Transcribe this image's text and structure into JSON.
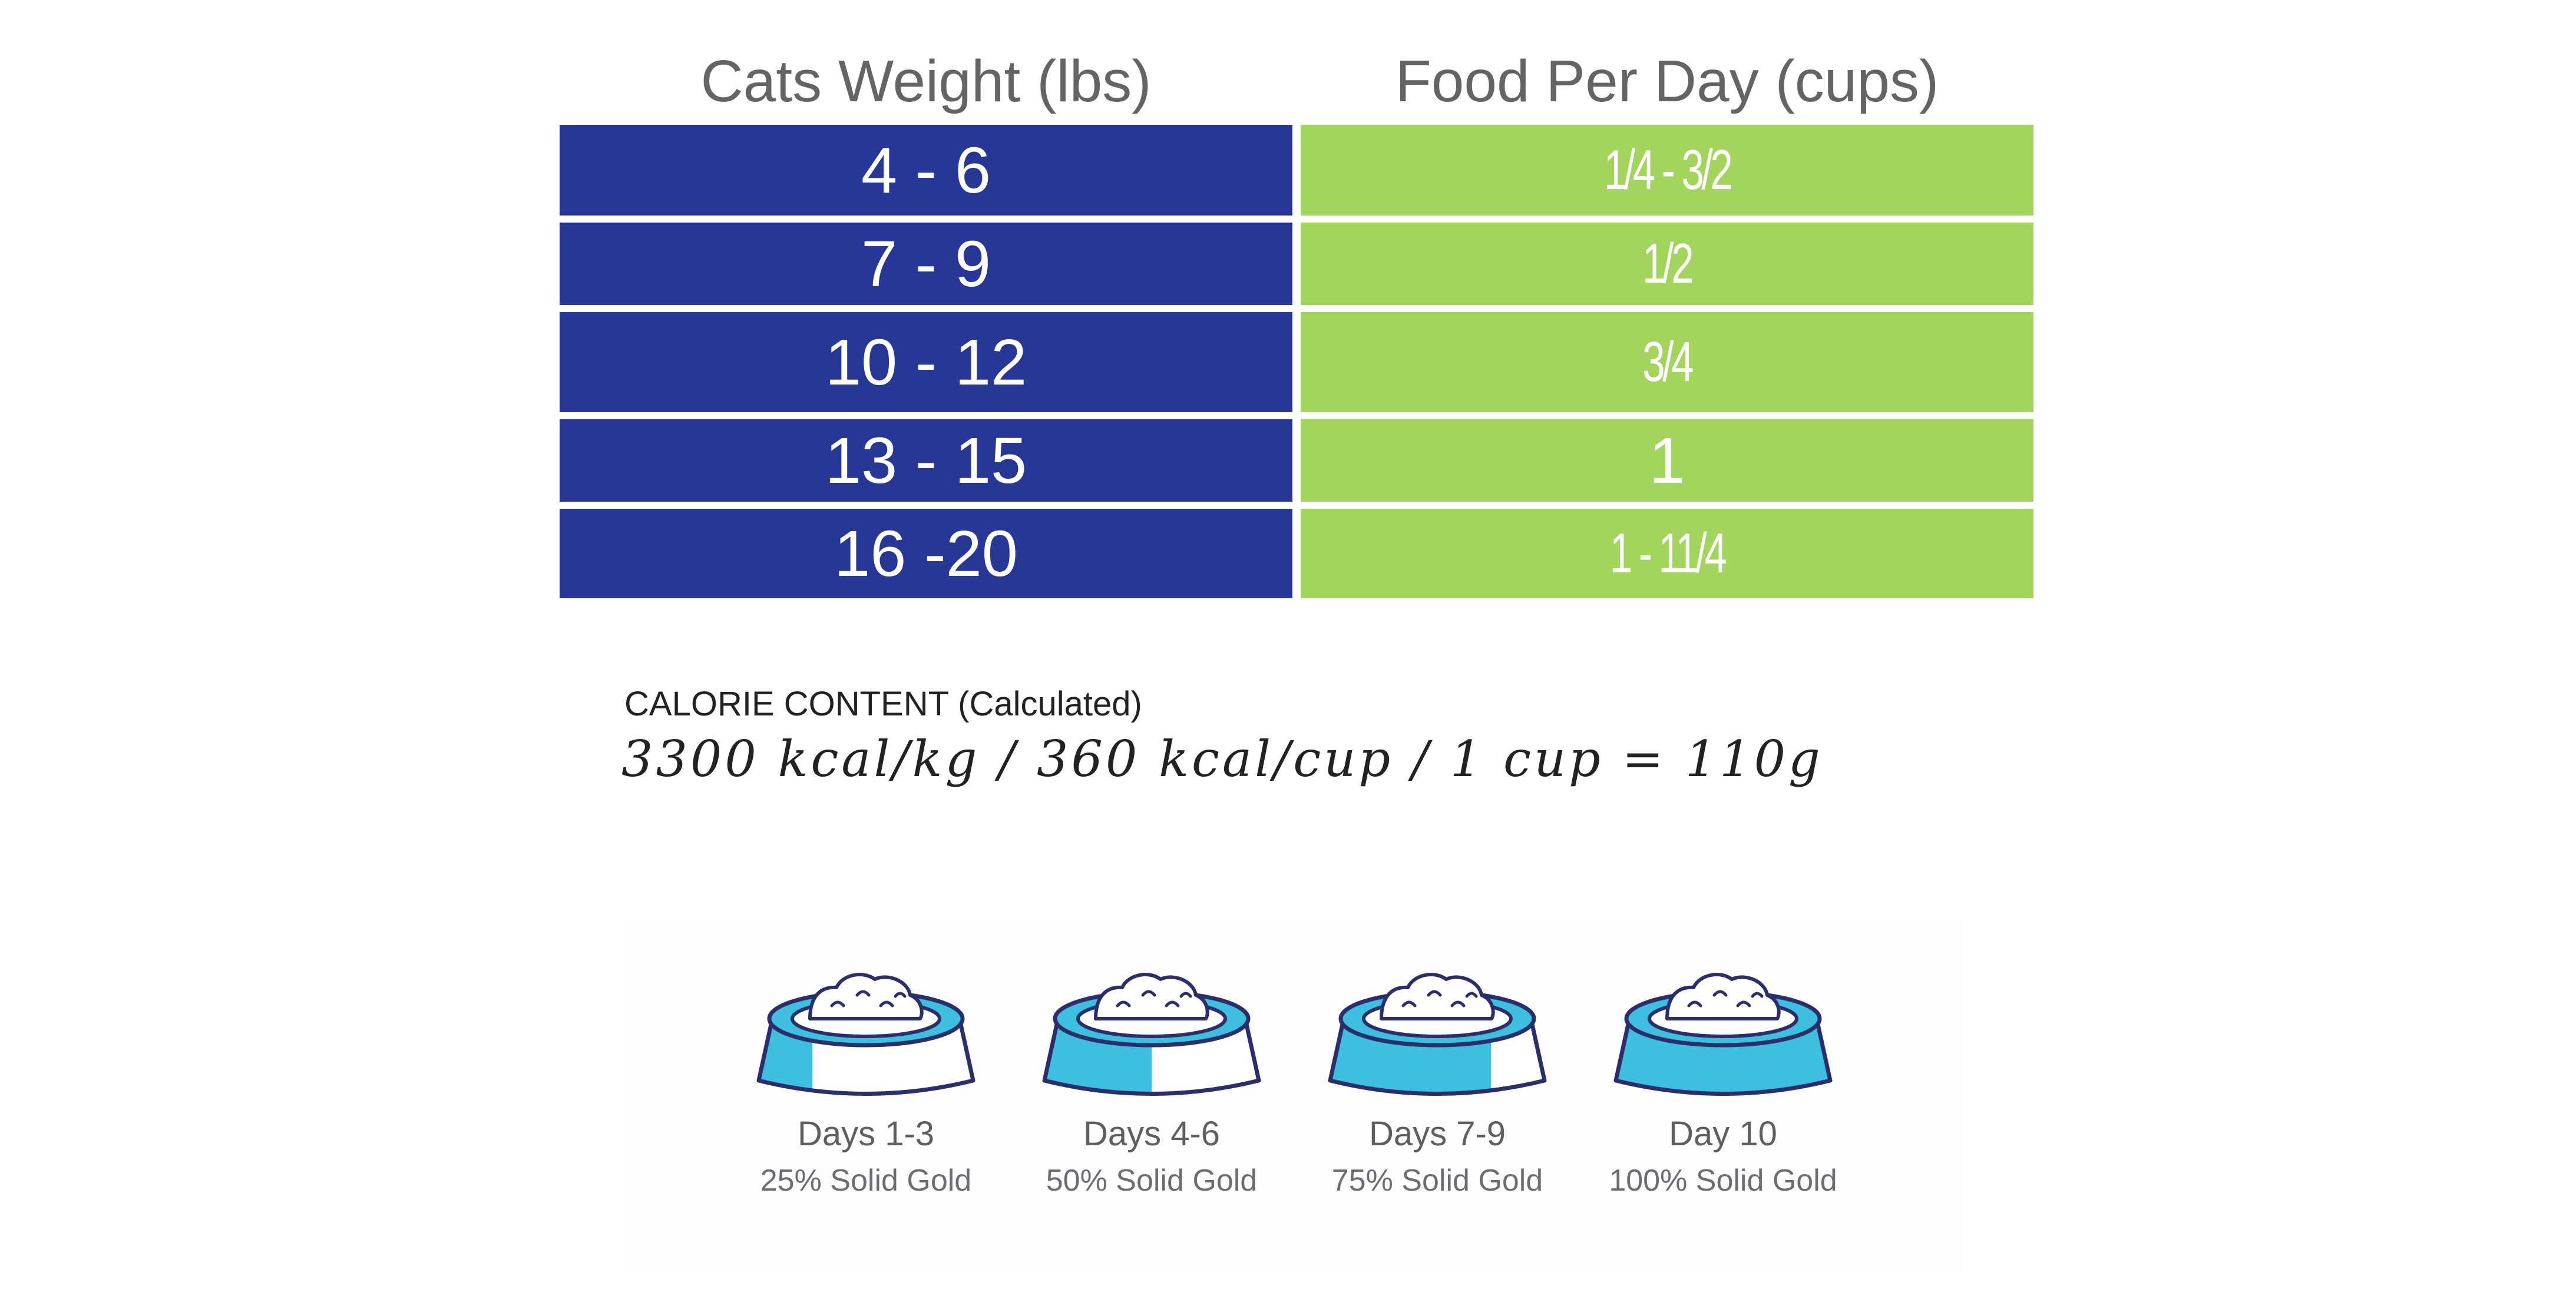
{
  "table": {
    "headers": [
      "Cats Weight (lbs)",
      "Food Per Day (cups)"
    ],
    "rows": [
      {
        "weight": "4 - 6",
        "food": "1/4 - 3/2"
      },
      {
        "weight": "7 - 9",
        "food": "1/2"
      },
      {
        "weight": "10 - 12",
        "food": "3/4"
      },
      {
        "weight": "13 - 15",
        "food": "1"
      },
      {
        "weight": "16 -20",
        "food": "1  - 11/4"
      }
    ]
  },
  "calorie": {
    "title": "CALORIE CONTENT (Calculated)",
    "values": "3300 kcal/kg / 360 kcal/cup / 1 cup = 110g"
  },
  "transition": [
    {
      "days": "Days 1-3",
      "portion": "25% Solid Gold",
      "fraction": 0.25
    },
    {
      "days": "Days 4-6",
      "portion": "50% Solid Gold",
      "fraction": 0.5
    },
    {
      "days": "Days 7-9",
      "portion": "75% Solid Gold",
      "fraction": 0.75
    },
    {
      "days": "Day 10",
      "portion": "100% Solid Gold",
      "fraction": 1.0
    }
  ],
  "colors": {
    "weight_cell": "#263795",
    "food_cell": "#a2d45e",
    "bowl_fill": "#3fbfe0",
    "bowl_outline": "#2a2f6b"
  }
}
